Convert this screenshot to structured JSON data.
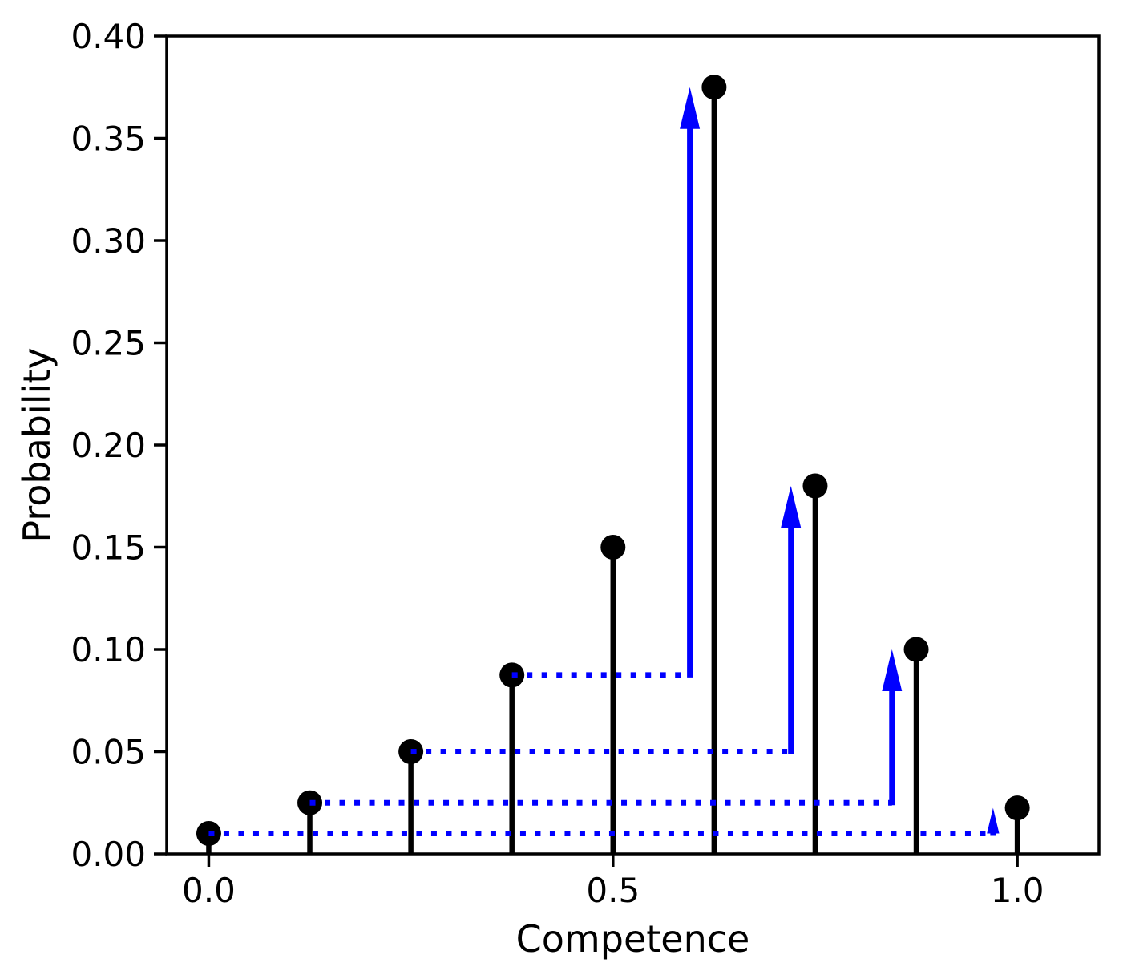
{
  "figure": {
    "background": "#ffffff"
  },
  "chart_data": {
    "type": "stem",
    "title": "",
    "xlabel": "Competence",
    "ylabel": "Probability",
    "x": [
      0.0,
      0.125,
      0.25,
      0.375,
      0.5,
      0.625,
      0.75,
      0.875,
      1.0
    ],
    "values": [
      0.01,
      0.025,
      0.05,
      0.0875,
      0.15,
      0.375,
      0.18,
      0.1,
      0.0225
    ],
    "xlim": [
      -0.052,
      1.101
    ],
    "ylim": [
      0.0,
      0.4
    ],
    "xticks": {
      "values": [
        0.0,
        0.5,
        1.0
      ],
      "labels": [
        "0.0",
        "0.5",
        "1.0"
      ]
    },
    "yticks": {
      "values": [
        0.0,
        0.05,
        0.1,
        0.15,
        0.2,
        0.25,
        0.3,
        0.35,
        0.4
      ],
      "labels": [
        "0.00",
        "0.05",
        "0.10",
        "0.15",
        "0.20",
        "0.25",
        "0.30",
        "0.35",
        "0.40"
      ]
    },
    "grid": false,
    "legend": null,
    "stem_color": "#000000",
    "marker_color": "#000000",
    "axis_color": "#000000",
    "arrow_color": "#0000ff",
    "arrows": [
      {
        "from_x": 0.0,
        "from_y": 0.01,
        "to_x": 0.97,
        "to_y": 0.0225
      },
      {
        "from_x": 0.125,
        "from_y": 0.025,
        "to_x": 0.845,
        "to_y": 0.1
      },
      {
        "from_x": 0.25,
        "from_y": 0.05,
        "to_x": 0.72,
        "to_y": 0.18
      },
      {
        "from_x": 0.375,
        "from_y": 0.0875,
        "to_x": 0.595,
        "to_y": 0.375
      }
    ]
  }
}
